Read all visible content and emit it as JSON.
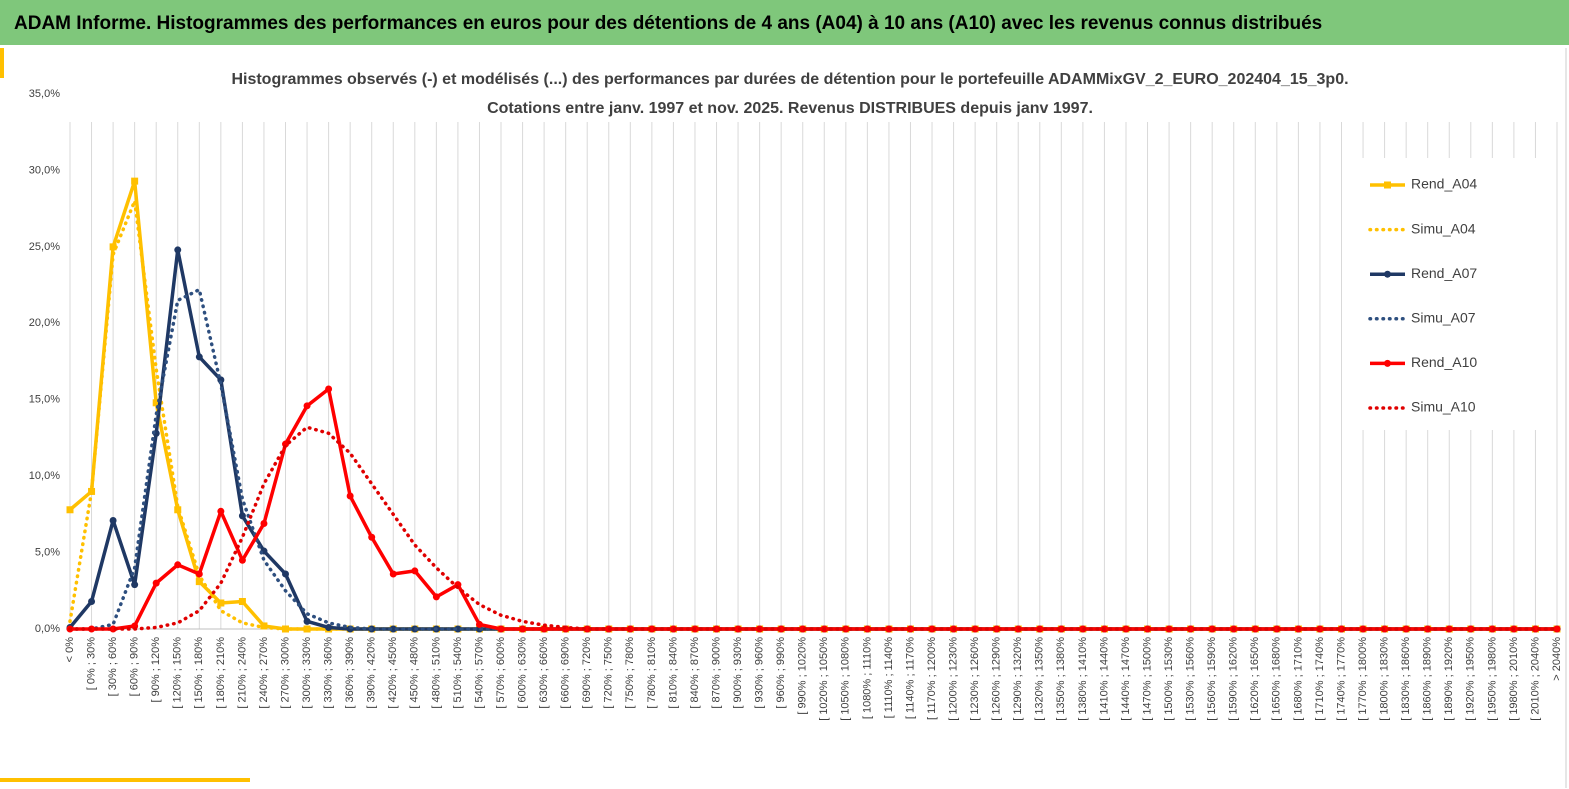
{
  "header": "ADAM Informe. Histogrammes des performances en euros pour des détentions de 4 ans (A04) à 10 ans (A10) avec les revenus connus distribués",
  "chart_data": {
    "type": "line",
    "title": "Histogrammes observés (-) et modélisés (...) des performances par durées de détention pour le portefeuille ADAMMixGV_2_EURO_202404_15_3p0.",
    "subtitle": "Cotations entre janv. 1997 et nov. 2025. Revenus DISTRIBUES depuis janv 1997.",
    "categories": [
      "< 0%",
      "[ 0% ; 30%",
      "[ 30% ; 60%",
      "[ 60% ; 90%",
      "[ 90% ; 120%",
      "[ 120% ; 150%",
      "[ 150% ; 180%",
      "[ 180% ; 210%",
      "[ 210% ; 240%",
      "[ 240% ; 270%",
      "[ 270% ; 300%",
      "[ 300% ; 330%",
      "[ 330% ; 360%",
      "[ 360% ; 390%",
      "[ 390% ; 420%",
      "[ 420% ; 450%",
      "[ 450% ; 480%",
      "[ 480% ; 510%",
      "[ 510% ; 540%",
      "[ 540% ; 570%",
      "[ 570% ; 600%",
      "[ 600% ; 630%",
      "[ 630% ; 660%",
      "[ 660% ; 690%",
      "[ 690% ; 720%",
      "[ 720% ; 750%",
      "[ 750% ; 780%",
      "[ 780% ; 810%",
      "[ 810% ; 840%",
      "[ 840% ; 870%",
      "[ 870% ; 900%",
      "[ 900% ; 930%",
      "[ 930% ; 960%",
      "[ 960% ; 990%",
      "[ 990% ; 1020%",
      "[ 1020% ; 1050%",
      "[ 1050% ; 1080%",
      "[ 1080% ; 1110%",
      "[ 1110% ; 1140%",
      "[ 1140% ; 1170%",
      "[ 1170% ; 1200%",
      "[ 1200% ; 1230%",
      "[ 1230% ; 1260%",
      "[ 1260% ; 1290%",
      "[ 1290% ; 1320%",
      "[ 1320% ; 1350%",
      "[ 1350% ; 1380%",
      "[ 1380% ; 1410%",
      "[ 1410% ; 1440%",
      "[ 1440% ; 1470%",
      "[ 1470% ; 1500%",
      "[ 1500% ; 1530%",
      "[ 1530% ; 1560%",
      "[ 1560% ; 1590%",
      "[ 1590% ; 1620%",
      "[ 1620% ; 1650%",
      "[ 1650% ; 1680%",
      "[ 1680% ; 1710%",
      "[ 1710% ; 1740%",
      "[ 1740% ; 1770%",
      "[ 1770% ; 1800%",
      "[ 1800% ; 1830%",
      "[ 1830% ; 1860%",
      "[ 1860% ; 1890%",
      "[ 1890% ; 1920%",
      "[ 1920% ; 1950%",
      "[ 1950% ; 1980%",
      "[ 1980% ; 2010%",
      "[ 2010% ; 2040%",
      "> 2040%"
    ],
    "series": [
      {
        "name": "Rend_A04",
        "color": "#ffc000",
        "style": "solid",
        "marker": "square",
        "values": [
          7.8,
          9.0,
          25.0,
          29.3,
          14.8,
          7.8,
          3.1,
          1.7,
          1.8,
          0.2,
          0,
          0,
          0,
          0,
          0,
          0,
          0,
          0,
          0,
          0,
          0,
          0,
          0,
          0,
          0,
          0,
          0,
          0,
          0,
          0,
          0,
          0,
          0,
          0,
          0,
          0,
          0,
          0,
          0,
          0,
          0,
          0,
          0,
          0,
          0,
          0,
          0,
          0,
          0,
          0,
          0,
          0,
          0,
          0,
          0,
          0,
          0,
          0,
          0,
          0,
          0,
          0,
          0,
          0,
          0,
          0,
          0,
          0,
          0,
          0
        ]
      },
      {
        "name": "Simu_A04",
        "color": "#ffc000",
        "style": "dotted",
        "values": [
          0.5,
          9.0,
          24.5,
          28.0,
          17.0,
          8.0,
          3.5,
          1.2,
          0.4,
          0.1,
          0,
          0,
          0,
          0,
          0,
          0,
          0,
          0,
          0,
          0,
          0,
          0,
          0,
          0,
          0,
          0,
          0,
          0,
          0,
          0,
          0,
          0,
          0,
          0,
          0,
          0,
          0,
          0,
          0,
          0,
          0,
          0,
          0,
          0,
          0,
          0,
          0,
          0,
          0,
          0,
          0,
          0,
          0,
          0,
          0,
          0,
          0,
          0,
          0,
          0,
          0,
          0,
          0,
          0,
          0,
          0,
          0,
          0,
          0,
          0
        ]
      },
      {
        "name": "Rend_A07",
        "color": "#1f3864",
        "style": "solid",
        "marker": "circle",
        "values": [
          0.1,
          1.8,
          7.1,
          2.9,
          12.8,
          24.8,
          17.8,
          16.3,
          7.4,
          5.1,
          3.6,
          0.5,
          0.1,
          0,
          0,
          0,
          0,
          0,
          0,
          0,
          0,
          0,
          0,
          0,
          0,
          0,
          0,
          0,
          0,
          0,
          0,
          0,
          0,
          0,
          0,
          0,
          0,
          0,
          0,
          0,
          0,
          0,
          0,
          0,
          0,
          0,
          0,
          0,
          0,
          0,
          0,
          0,
          0,
          0,
          0,
          0,
          0,
          0,
          0,
          0,
          0,
          0,
          0,
          0,
          0,
          0,
          0,
          0,
          0,
          0
        ]
      },
      {
        "name": "Simu_A07",
        "color": "#2e4f7f",
        "style": "dotted",
        "values": [
          0,
          0,
          0.3,
          4.0,
          14.0,
          21.5,
          22.2,
          16.0,
          8.5,
          4.5,
          2.5,
          1.0,
          0.4,
          0.1,
          0,
          0,
          0,
          0,
          0,
          0,
          0,
          0,
          0,
          0,
          0,
          0,
          0,
          0,
          0,
          0,
          0,
          0,
          0,
          0,
          0,
          0,
          0,
          0,
          0,
          0,
          0,
          0,
          0,
          0,
          0,
          0,
          0,
          0,
          0,
          0,
          0,
          0,
          0,
          0,
          0,
          0,
          0,
          0,
          0,
          0,
          0,
          0,
          0,
          0,
          0,
          0,
          0,
          0,
          0,
          0
        ]
      },
      {
        "name": "Rend_A10",
        "color": "#ff0000",
        "style": "solid",
        "marker": "circle",
        "values": [
          0,
          0,
          0,
          0.2,
          3.0,
          4.2,
          3.6,
          7.7,
          4.5,
          6.9,
          12.1,
          14.6,
          15.7,
          8.7,
          6.0,
          3.6,
          3.8,
          2.1,
          2.9,
          0.3,
          0,
          0,
          0,
          0,
          0,
          0,
          0,
          0,
          0,
          0,
          0,
          0,
          0,
          0,
          0,
          0,
          0,
          0,
          0,
          0,
          0,
          0,
          0,
          0,
          0,
          0,
          0,
          0,
          0,
          0,
          0,
          0,
          0,
          0,
          0,
          0,
          0,
          0,
          0,
          0,
          0,
          0,
          0,
          0,
          0,
          0,
          0,
          0,
          0,
          0
        ]
      },
      {
        "name": "Simu_A10",
        "color": "#e00000",
        "style": "dotted",
        "values": [
          0,
          0,
          0,
          0,
          0.1,
          0.4,
          1.2,
          3.0,
          6.0,
          9.5,
          12.0,
          13.2,
          12.8,
          11.5,
          9.5,
          7.5,
          5.5,
          4.0,
          2.7,
          1.6,
          0.9,
          0.5,
          0.25,
          0.1,
          0,
          0,
          0,
          0,
          0,
          0,
          0,
          0,
          0,
          0,
          0,
          0,
          0,
          0,
          0,
          0,
          0,
          0,
          0,
          0,
          0,
          0,
          0,
          0,
          0,
          0,
          0,
          0,
          0,
          0,
          0,
          0,
          0,
          0,
          0,
          0,
          0,
          0,
          0,
          0,
          0,
          0,
          0,
          0,
          0,
          0
        ]
      }
    ],
    "ylim": [
      0,
      35
    ],
    "yticks": [
      {
        "value": 0,
        "label": "0,0%"
      },
      {
        "value": 5,
        "label": "5,0%"
      },
      {
        "value": 10,
        "label": "10,0%"
      },
      {
        "value": 15,
        "label": "15,0%"
      },
      {
        "value": 20,
        "label": "20,0%"
      },
      {
        "value": 25,
        "label": "25,0%"
      },
      {
        "value": 30,
        "label": "30,0%"
      },
      {
        "value": 35,
        "label": "35,0%"
      }
    ],
    "grid": "x",
    "legend": "right"
  }
}
